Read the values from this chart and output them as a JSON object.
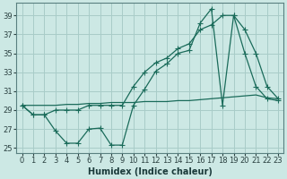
{
  "xlabel": "Humidex (Indice chaleur)",
  "background_color": "#cce8e4",
  "grid_color": "#a8ccc8",
  "line_color": "#1a6b5a",
  "xlim": [
    -0.5,
    23.5
  ],
  "ylim": [
    24.5,
    40.3
  ],
  "xticks": [
    0,
    1,
    2,
    3,
    4,
    5,
    6,
    7,
    8,
    9,
    10,
    11,
    12,
    13,
    14,
    15,
    16,
    17,
    18,
    19,
    20,
    21,
    22,
    23
  ],
  "yticks": [
    25,
    27,
    29,
    31,
    33,
    35,
    37,
    39
  ],
  "series_jagged_x": [
    0,
    1,
    2,
    3,
    4,
    5,
    6,
    7,
    8,
    9,
    10,
    11,
    12,
    13,
    14,
    15,
    16,
    17,
    18,
    19,
    20,
    21,
    22,
    23
  ],
  "series_jagged_y": [
    29.5,
    28.5,
    28.5,
    26.8,
    25.5,
    25.5,
    27.0,
    27.1,
    25.3,
    25.3,
    29.5,
    31.2,
    33.1,
    33.9,
    35.0,
    35.3,
    38.2,
    39.7,
    29.5,
    39.0,
    35.0,
    31.5,
    30.2,
    30.0
  ],
  "series_diag_x": [
    0,
    1,
    2,
    3,
    4,
    5,
    6,
    7,
    8,
    9,
    10,
    11,
    12,
    13,
    14,
    15,
    16,
    17,
    18,
    19,
    20,
    21,
    22,
    23
  ],
  "series_diag_y": [
    29.5,
    29.5,
    29.5,
    29.5,
    29.6,
    29.6,
    29.7,
    29.7,
    29.8,
    29.8,
    29.8,
    29.9,
    29.9,
    29.9,
    30.0,
    30.0,
    30.1,
    30.2,
    30.3,
    30.4,
    30.5,
    30.6,
    30.3,
    30.2
  ],
  "series_upper_x": [
    0,
    1,
    2,
    3,
    4,
    5,
    6,
    7,
    8,
    9,
    10,
    11,
    12,
    13,
    14,
    15,
    16,
    17,
    18,
    19,
    20,
    21,
    22,
    23
  ],
  "series_upper_y": [
    29.5,
    28.5,
    28.5,
    29.0,
    29.0,
    29.0,
    29.5,
    29.5,
    29.5,
    29.5,
    31.5,
    33.0,
    34.0,
    34.5,
    35.5,
    36.0,
    37.5,
    38.0,
    39.0,
    39.0,
    37.5,
    35.0,
    31.5,
    30.2
  ]
}
